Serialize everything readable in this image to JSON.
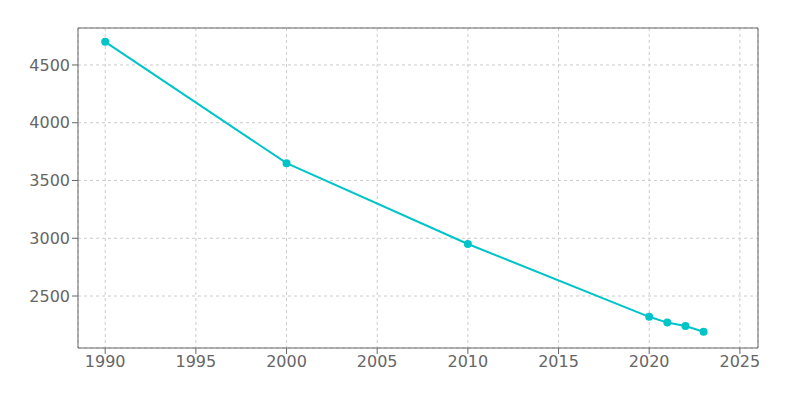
{
  "chart_data": {
    "type": "line",
    "x": [
      1990,
      2000,
      2010,
      2020,
      2021,
      2022,
      2023
    ],
    "values": [
      4700,
      3650,
      2950,
      2320,
      2270,
      2240,
      2190
    ],
    "color": "#00C5C8",
    "marker": "circle",
    "xlim": [
      1988.5,
      2026
    ],
    "ylim": [
      2050,
      4820
    ],
    "xticks": [
      1990,
      1995,
      2000,
      2005,
      2010,
      2015,
      2020,
      2025
    ],
    "yticks": [
      2500,
      3000,
      3500,
      4000,
      4500
    ],
    "grid": true
  }
}
